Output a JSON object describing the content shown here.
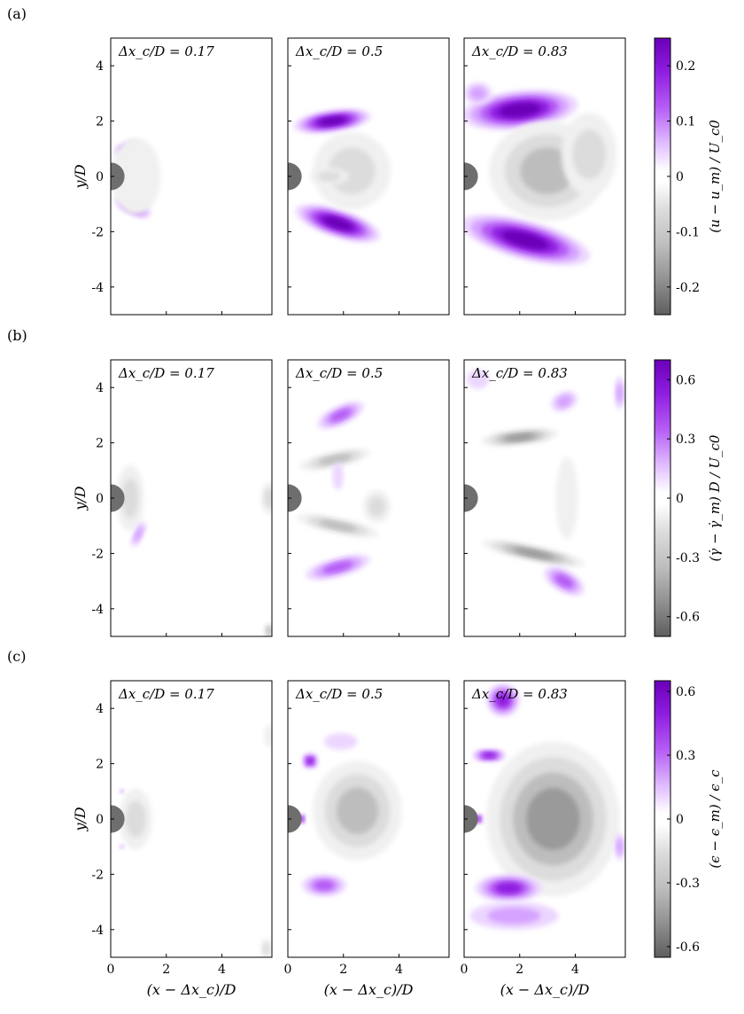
{
  "figure": {
    "rows": [
      {
        "label": "(a)",
        "colorbar": {
          "label": "(u − u_m) / U_c0",
          "ticks": [
            "0.2",
            "0.1",
            "0",
            "-0.1",
            "-0.2"
          ],
          "tick_values": [
            0.2,
            0.1,
            0,
            -0.1,
            -0.2
          ],
          "range": [
            -0.25,
            0.25
          ],
          "positive_color": "#7a00d6",
          "negative_color": "#5a5a5a"
        },
        "panels": [
          {
            "title": "Δx_c/D = 0.17"
          },
          {
            "title": "Δx_c/D = 0.5"
          },
          {
            "title": "Δx_c/D = 0.83"
          }
        ]
      },
      {
        "label": "(b)",
        "colorbar": {
          "label": "(γ̇ − γ̇_m) D / U_c0",
          "ticks": [
            "0.6",
            "0.3",
            "0",
            "-0.3",
            "-0.6"
          ],
          "tick_values": [
            0.6,
            0.3,
            0,
            -0.3,
            -0.6
          ],
          "range": [
            -0.7,
            0.7
          ],
          "positive_color": "#7a00d6",
          "negative_color": "#5a5a5a"
        },
        "panels": [
          {
            "title": "Δx_c/D = 0.17"
          },
          {
            "title": "Δx_c/D = 0.5"
          },
          {
            "title": "Δx_c/D = 0.83"
          }
        ]
      },
      {
        "label": "(c)",
        "colorbar": {
          "label": "(ϵ − ϵ_m) / ϵ_c",
          "ticks": [
            "0.6",
            "0.3",
            "0",
            "-0.3",
            "-0.6"
          ],
          "tick_values": [
            0.6,
            0.3,
            0,
            -0.3,
            -0.6
          ],
          "range": [
            -0.65,
            0.65
          ],
          "positive_color": "#7a00d6",
          "negative_color": "#5a5a5a"
        },
        "panels": [
          {
            "title": "Δx_c/D = 0.17"
          },
          {
            "title": "Δx_c/D = 0.5"
          },
          {
            "title": "Δx_c/D = 0.83"
          }
        ]
      }
    ],
    "ylabel": "y/D",
    "xlabel": "(x − Δx_c)/D",
    "y_ticks": [
      "4",
      "2",
      "0",
      "-2",
      "-4"
    ],
    "x_ticks": [
      "0",
      "2",
      "4"
    ]
  },
  "chart_data": {
    "type": "heatmap",
    "description_of_axes": "contour maps of fluctuation fields behind a cylinder",
    "x": {
      "label": "(x − Δx_c)/D",
      "range": [
        0,
        5.8
      ],
      "ticks": [
        0,
        2,
        4
      ]
    },
    "y": {
      "label": "y/D",
      "range": [
        -5,
        5
      ],
      "ticks": [
        4,
        2,
        0,
        -2,
        -4
      ]
    },
    "rows": [
      {
        "label": "(a)",
        "quantity": "(u − u_m) / U_c0",
        "clim": [
          -0.25,
          0.25
        ],
        "panels": [
          "Δx_c/D = 0.17",
          "Δx_c/D = 0.5",
          "Δx_c/D = 0.83"
        ]
      },
      {
        "label": "(b)",
        "quantity": "(γ̇ − γ̇_m) D / U_c0",
        "clim": [
          -0.7,
          0.7
        ],
        "panels": [
          "Δx_c/D = 0.17",
          "Δx_c/D = 0.5",
          "Δx_c/D = 0.83"
        ]
      },
      {
        "label": "(c)",
        "quantity": "(ϵ − ϵ_m) / ϵ_c",
        "clim": [
          -0.65,
          0.65
        ],
        "panels": [
          "Δx_c/D = 0.17",
          "Δx_c/D = 0.5",
          "Δx_c/D = 0.83"
        ]
      }
    ]
  }
}
